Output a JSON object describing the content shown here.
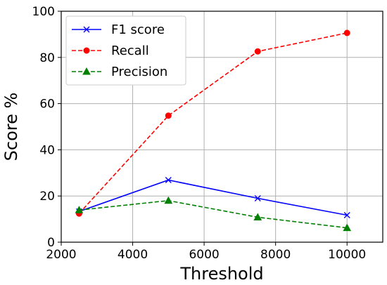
{
  "chart_data": {
    "type": "line",
    "xlabel": "Threshold",
    "ylabel": "Score %",
    "xlim": [
      2000,
      11000
    ],
    "ylim": [
      0,
      100
    ],
    "xticks": [
      2000,
      4000,
      6000,
      8000,
      10000
    ],
    "yticks": [
      0,
      20,
      40,
      60,
      80,
      100
    ],
    "grid": true,
    "legend_position": "top-left",
    "x": [
      2500,
      5000,
      7500,
      10000
    ],
    "series": [
      {
        "name": "F1 score",
        "values": [
          13.3,
          26.9,
          19.0,
          11.7
        ],
        "color": "#0000ff",
        "line_style": "solid",
        "marker": "x"
      },
      {
        "name": "Recall",
        "values": [
          12.4,
          54.8,
          82.6,
          90.6
        ],
        "color": "#ff0000",
        "line_style": "dashed",
        "marker": "circle"
      },
      {
        "name": "Precision",
        "values": [
          13.9,
          18.0,
          10.8,
          6.2
        ],
        "color": "#008000",
        "line_style": "dashed",
        "marker": "triangle"
      }
    ]
  }
}
